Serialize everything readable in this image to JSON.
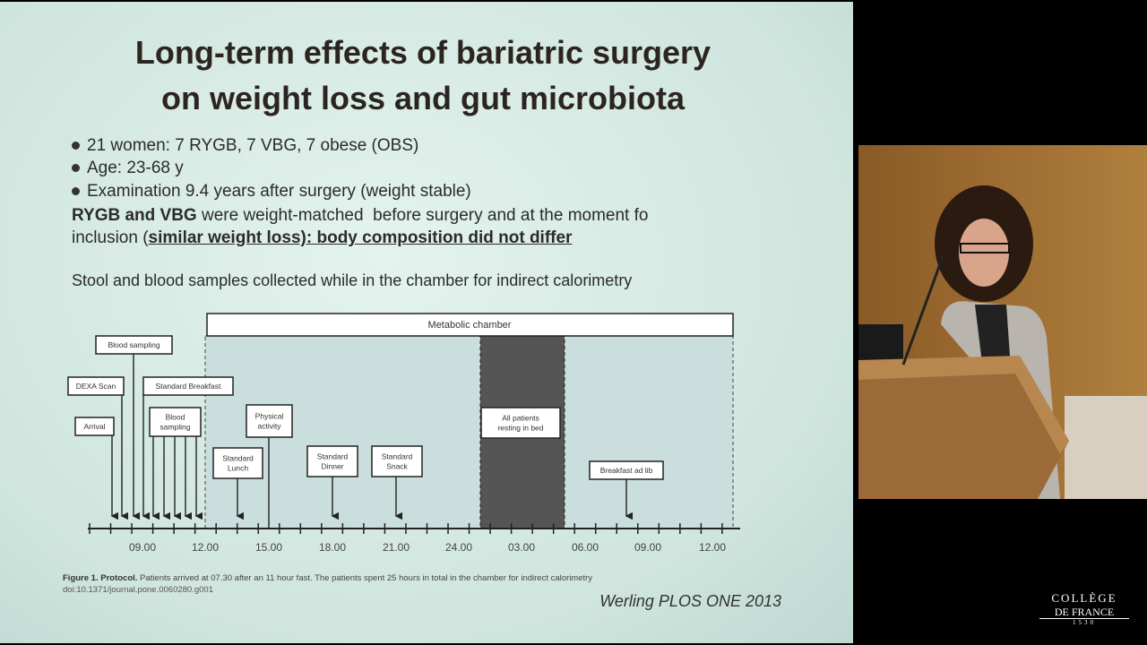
{
  "slide": {
    "title": [
      "Long-term effects of bariatric surgery",
      "on weight loss and gut microbiota"
    ],
    "bullets": [
      "21 women: 7 RYGB, 7 VBG, 7 obese (OBS)",
      "Age: 23-68 y",
      "Examination 9.4 years after surgery (weight stable)"
    ],
    "paragraph": {
      "bold": "RYGB and VBG",
      "line1": " were weight-matched  before surgery and at the moment fo",
      "line2": "inclusion (",
      "emphasis": "similar weight loss): body composition did not differ"
    },
    "samples": "Stool and blood samples collected while in the chamber for indirect calorimetry",
    "figure": {
      "chamber": "Metabolic chamber",
      "boxes": {
        "blood_sampling": [
          "Blood sampling"
        ],
        "dexa": [
          "DEXA Scan"
        ],
        "breakfast": [
          "Standard Breakfast"
        ],
        "arrival": [
          "Arrival"
        ],
        "blood_sampling_2": [
          "Blood",
          "sampling"
        ],
        "physical": [
          "Physical",
          "activity"
        ],
        "lunch": [
          "Standard",
          "Lunch"
        ],
        "dinner": [
          "Standard",
          "Dinner"
        ],
        "snack": [
          "Standard",
          "Snack"
        ],
        "resting": [
          "All patients",
          "resting in bed"
        ],
        "breakfast_ad_lib": [
          "Breakfast ad lib"
        ]
      },
      "times": [
        "09.00",
        "12.00",
        "15.00",
        "18.00",
        "21.00",
        "24.00",
        "03.00",
        "06.00",
        "09.00",
        "12.00"
      ],
      "caption_bold": "Figure 1. Protocol.",
      "caption": " Patients arrived at 07.30 after an 11 hour fast. The patients spent 25 hours in total in the chamber for indirect calorimetry",
      "doi": "doi:10.1371/journal.pone.0060280.g001"
    },
    "citation": "Werling PLOS ONE 2013"
  },
  "logo": {
    "line1": "COLLÈGE",
    "line2": "DE FRANCE",
    "year": "1530"
  }
}
